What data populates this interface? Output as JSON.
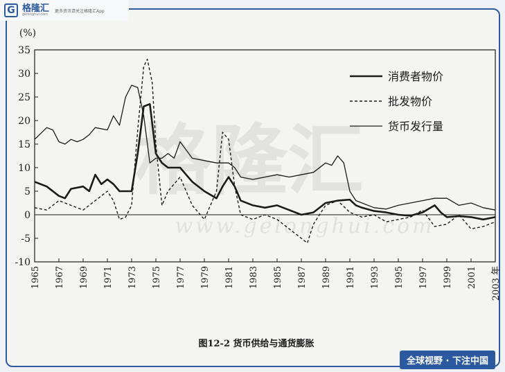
{
  "brand": {
    "logo_letter": "G",
    "name": "格隆汇",
    "url": "gelonghui.com",
    "tagline": "更多资讯请关注格隆汇App"
  },
  "watermark": {
    "cn": "格隆汇",
    "url": "www.gelonghui.com"
  },
  "footer": {
    "slogan": "全球视野 · 下注中国"
  },
  "chart_data": {
    "type": "line",
    "title": "图12-2  货币供给与通货膨胀",
    "ylabel": "(%)",
    "xlabel": "年",
    "ylim": [
      -10,
      35
    ],
    "xlim": [
      1965,
      2003
    ],
    "yticks": [
      -10,
      -5,
      0,
      5,
      10,
      15,
      20,
      25,
      30,
      35
    ],
    "xticks": [
      1965,
      1967,
      1969,
      1971,
      1973,
      1975,
      1977,
      1979,
      1981,
      1983,
      1985,
      1987,
      1989,
      1991,
      1993,
      1995,
      1997,
      1999,
      2001,
      2003
    ],
    "xtick_labels": [
      "1965",
      "1967",
      "1969",
      "1971",
      "1973",
      "1975",
      "1977",
      "1979",
      "1981",
      "1983",
      "1985",
      "1987",
      "1989",
      "1991",
      "1993",
      "1995",
      "1997",
      "1999",
      "2001",
      "2003 年"
    ],
    "legend_position": "top-right",
    "series": [
      {
        "name": "消费者物价",
        "style": "thick",
        "color": "#1a1a1a",
        "x": [
          1965,
          1966,
          1967,
          1967.5,
          1968,
          1969,
          1969.5,
          1970,
          1970.5,
          1971,
          1971.5,
          1972,
          1973,
          1973.5,
          1974,
          1974.5,
          1975,
          1975.5,
          1976,
          1977,
          1978,
          1979,
          1980,
          1980.5,
          1981,
          1981.5,
          1982,
          1983,
          1984,
          1985,
          1986,
          1987,
          1988,
          1989,
          1990,
          1991,
          1991.5,
          1992,
          1993,
          1994,
          1995,
          1996,
          1997,
          1998,
          1998.5,
          1999,
          2000,
          2001,
          2002,
          2003
        ],
        "y": [
          7,
          6,
          4,
          3.5,
          5.5,
          6,
          5,
          8.5,
          6.5,
          7.5,
          6.5,
          5,
          5,
          13,
          23,
          23.5,
          13,
          11,
          10,
          10,
          7,
          5,
          3.5,
          6,
          8,
          6,
          3,
          2,
          1.5,
          2,
          1,
          0,
          0.5,
          2.5,
          3,
          3.2,
          2,
          1.5,
          0.8,
          0.5,
          0,
          -0.2,
          0.5,
          2,
          0.5,
          -0.5,
          -0.3,
          -0.5,
          -1,
          -0.5
        ]
      },
      {
        "name": "批发物价",
        "style": "dashed",
        "color": "#1a1a1a",
        "x": [
          1965,
          1966,
          1967,
          1968,
          1969,
          1970,
          1971,
          1971.5,
          1972,
          1972.5,
          1973,
          1973.5,
          1974,
          1974.3,
          1974.7,
          1975,
          1975.5,
          1976,
          1977,
          1978,
          1979,
          1980,
          1980.5,
          1981,
          1981.5,
          1982,
          1983,
          1984,
          1985,
          1986,
          1987,
          1987.5,
          1988,
          1989,
          1990,
          1991,
          1992,
          1993,
          1994,
          1995,
          1996,
          1997,
          1998,
          1999,
          2000,
          2001,
          2002,
          2003
        ],
        "y": [
          1.5,
          1,
          3,
          2,
          1,
          3,
          5,
          3,
          -1,
          -0.5,
          2,
          18,
          31.5,
          33,
          28,
          15,
          2,
          5,
          8,
          2,
          -1,
          5,
          17.5,
          16,
          6,
          0,
          -1,
          0,
          -1,
          -3,
          -5,
          -6,
          -2,
          2,
          3,
          0.5,
          -0.5,
          0,
          -1.5,
          -1,
          -0.5,
          1,
          -2.5,
          -2,
          0,
          -3,
          -2.5,
          -1.5
        ]
      },
      {
        "name": "货币发行量",
        "style": "thin",
        "color": "#1a1a1a",
        "x": [
          1965,
          1966,
          1966.5,
          1967,
          1967.5,
          1968,
          1968.5,
          1969,
          1969.5,
          1970,
          1971,
          1971.5,
          1972,
          1972.5,
          1973,
          1973.5,
          1974,
          1974.5,
          1975,
          1975.5,
          1976,
          1976.5,
          1977,
          1978,
          1979,
          1980,
          1981,
          1981.5,
          1982,
          1983,
          1984,
          1985,
          1986,
          1987,
          1988,
          1989,
          1989.5,
          1990,
          1990.5,
          1991,
          1991.5,
          1992,
          1993,
          1994,
          1995,
          1996,
          1997,
          1998,
          1999,
          2000,
          2001,
          2002,
          2003
        ],
        "y": [
          16,
          18.5,
          18,
          15.5,
          15,
          16,
          15.5,
          16,
          17,
          18.5,
          18,
          21,
          19,
          25,
          27.5,
          27,
          21,
          11,
          12,
          12,
          13,
          12,
          15.5,
          12,
          11.5,
          11,
          11,
          10,
          8,
          7.5,
          8,
          8.5,
          8,
          8.5,
          9,
          11,
          10.5,
          12.5,
          11,
          5,
          3,
          2.5,
          1.5,
          1.2,
          2,
          2.5,
          3,
          3.5,
          3.5,
          2,
          2.5,
          1.5,
          1
        ]
      }
    ]
  }
}
